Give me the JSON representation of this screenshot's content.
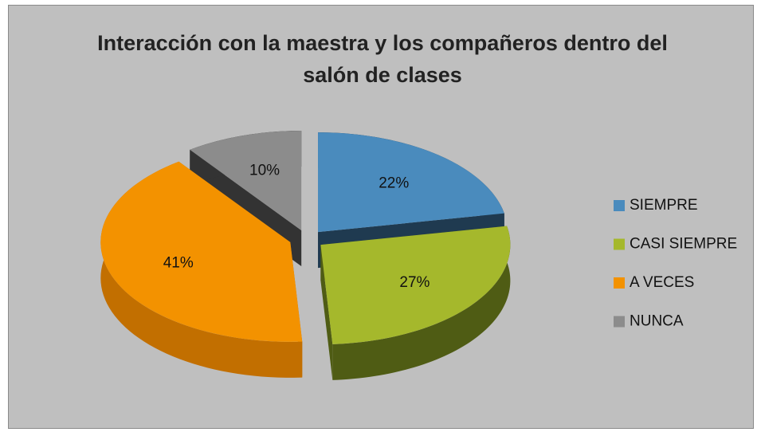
{
  "chart_data": {
    "type": "pie",
    "title": "Interacción con la maestra  y los compañeros dentro del salón de clases",
    "categories": [
      "SIEMPRE",
      "CASI SIEMPRE",
      "A VECES",
      "NUNCA"
    ],
    "values": [
      22,
      27,
      41,
      10
    ],
    "value_labels": [
      "22%",
      "27%",
      "41%",
      "10%"
    ],
    "colors": [
      "#4a8bbd",
      "#a5b82c",
      "#f39200",
      "#8c8c8c"
    ],
    "side_colors": [
      "#1f3a50",
      "#4f5c14",
      "#c26f00",
      "#333333"
    ],
    "legend": "right"
  }
}
